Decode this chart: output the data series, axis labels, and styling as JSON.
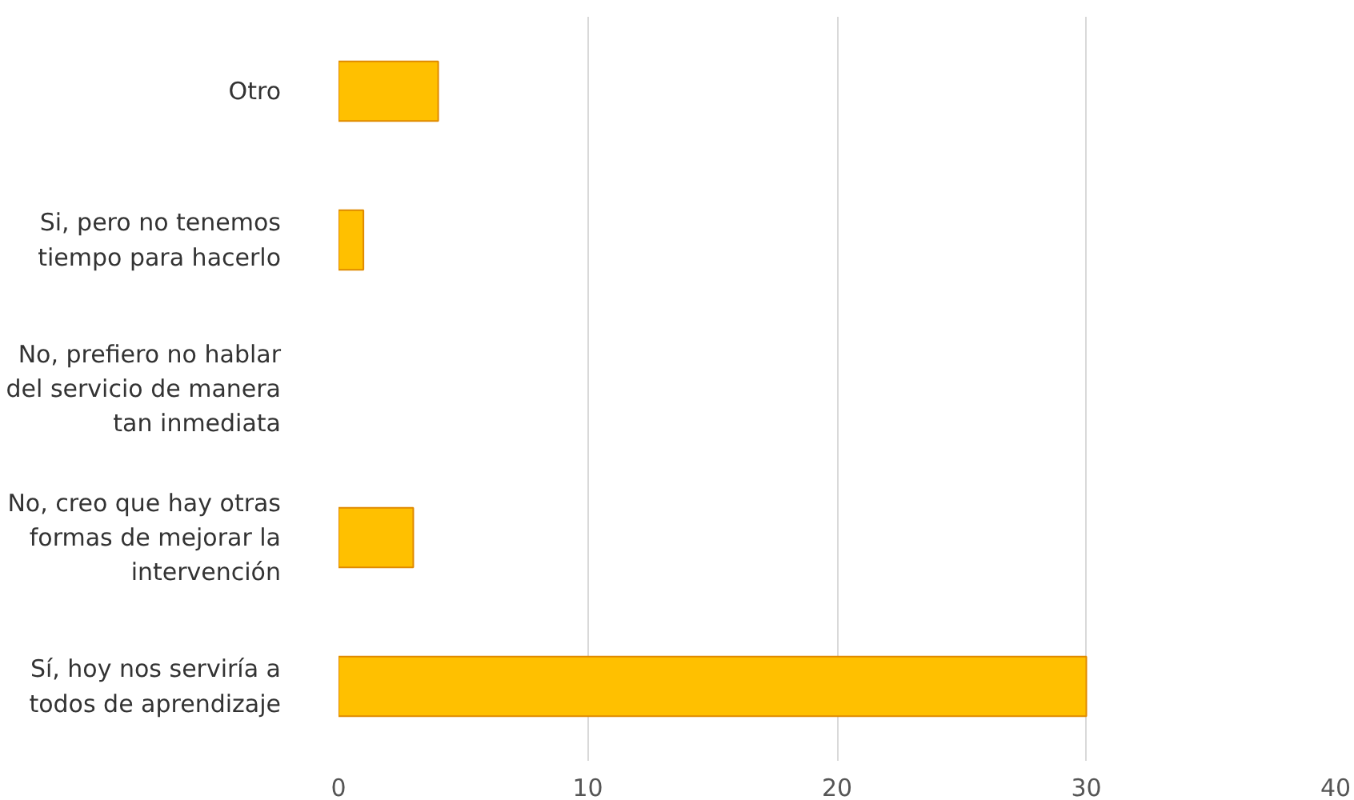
{
  "chart_data": {
    "type": "bar",
    "orientation": "horizontal",
    "categories": [
      "Otro",
      "Si, pero no tenemos tiempo para hacerlo",
      "No, prefiero no hablar del servicio de manera tan inmediata",
      "No, creo que hay otras formas de mejorar la intervención",
      "Sí, hoy nos serviría a todos de aprendizaje"
    ],
    "values": [
      4,
      1,
      0,
      3,
      30
    ],
    "color": "#ffc000",
    "xlim": [
      0,
      40
    ],
    "xticks": [
      0,
      10,
      20,
      30,
      40
    ],
    "grid": "x"
  }
}
